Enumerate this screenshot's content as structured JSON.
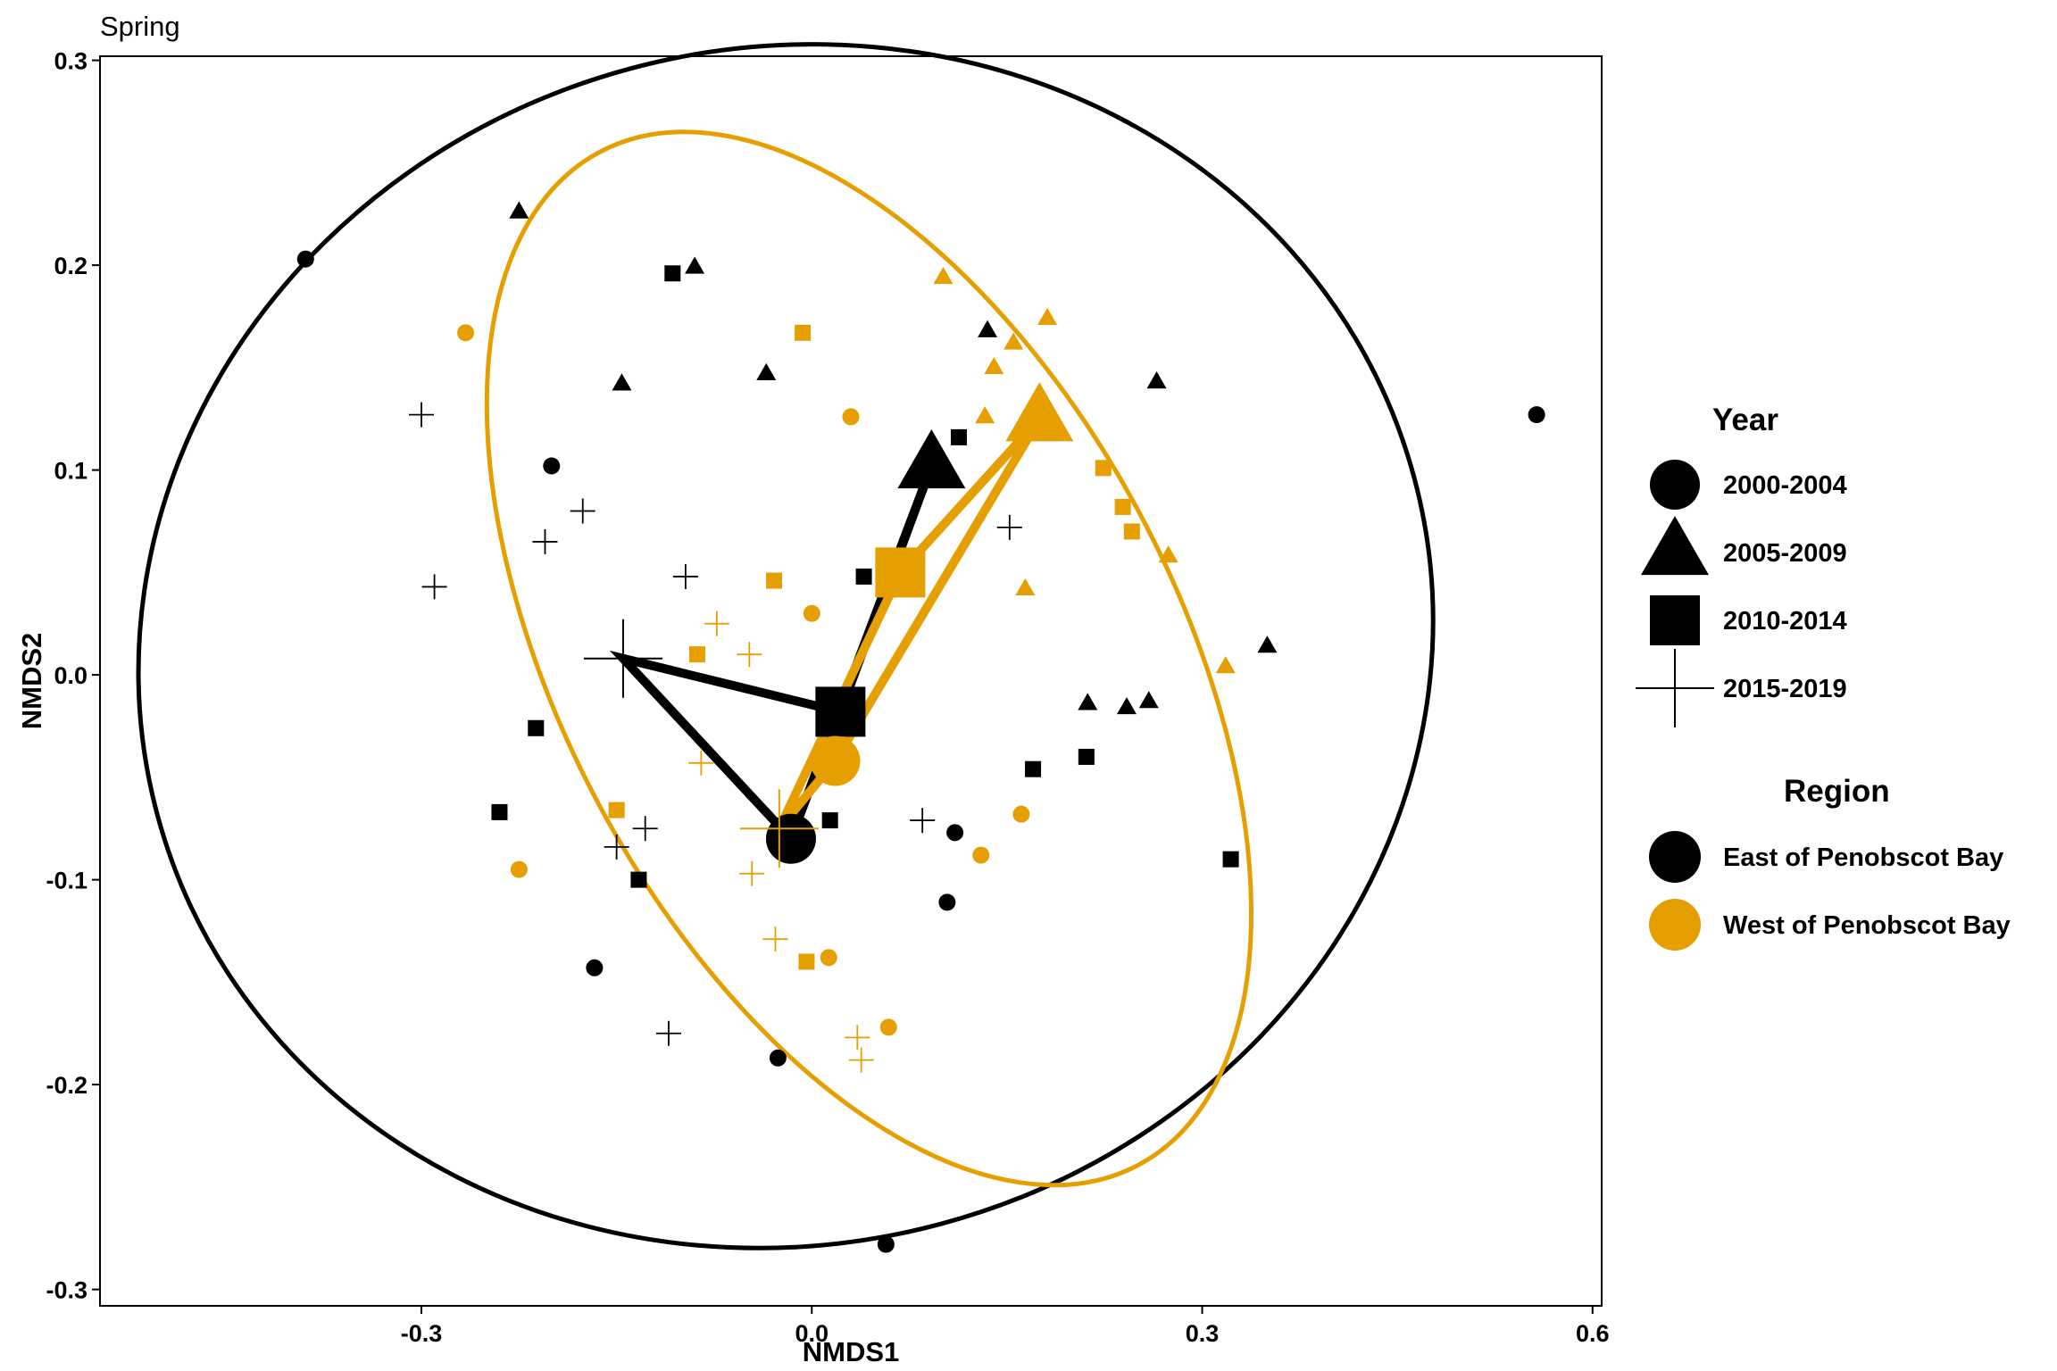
{
  "chart_data": {
    "type": "scatter",
    "title": "Spring",
    "xlabel": "NMDS1",
    "ylabel": "NMDS2",
    "xlim": [
      -0.547,
      0.607
    ],
    "ylim": [
      -0.308,
      0.302
    ],
    "x_ticks": [
      -0.3,
      0.0,
      0.3,
      0.6
    ],
    "x_tick_labels": [
      "-0.3",
      "0.0",
      "0.3",
      "0.6"
    ],
    "y_ticks": [
      -0.3,
      -0.2,
      -0.1,
      0.0,
      0.1,
      0.2,
      0.3
    ],
    "y_tick_labels": [
      "-0.3",
      "-0.2",
      "-0.1",
      "0.0",
      "0.1",
      "0.2",
      "0.3"
    ],
    "grid": false,
    "colors": {
      "East of Penobscot Bay": "#000000",
      "West of Penobscot Bay": "#E69F00"
    },
    "legend": {
      "placement": "right",
      "shape_title": "Year",
      "shape_entries": [
        {
          "label": "2000-2004",
          "shape": "circle"
        },
        {
          "label": "2005-2009",
          "shape": "triangle"
        },
        {
          "label": "2010-2014",
          "shape": "square"
        },
        {
          "label": "2015-2019",
          "shape": "plus"
        }
      ],
      "color_title": "Region",
      "color_entries": [
        {
          "label": "East of Penobscot Bay",
          "color": "#000000"
        },
        {
          "label": "West of Penobscot Bay",
          "color": "#E69F00"
        }
      ]
    },
    "ellipses": [
      {
        "region": "East of Penobscot Bay",
        "center": [
          -0.02,
          0.014
        ],
        "rx": 0.5,
        "ry": 0.292,
        "rotation_deg": -15
      },
      {
        "region": "West of Penobscot Bay",
        "center": [
          0.044,
          0.008
        ],
        "rx": 0.236,
        "ry": 0.28,
        "rotation_deg": -28
      }
    ],
    "centroid_paths": [
      {
        "region": "East of Penobscot Bay",
        "order": [
          "2000-2004",
          "2005-2009",
          "2010-2014",
          "2015-2019"
        ],
        "points": [
          [
            -0.016,
            -0.08
          ],
          [
            0.092,
            0.102
          ],
          [
            0.022,
            -0.018
          ],
          [
            -0.145,
            0.008
          ]
        ]
      },
      {
        "region": "West of Penobscot Bay",
        "order": [
          "2000-2004",
          "2005-2009",
          "2010-2014",
          "2015-2019"
        ],
        "points": [
          [
            0.018,
            -0.042
          ],
          [
            0.175,
            0.125
          ],
          [
            0.068,
            0.05
          ],
          [
            -0.025,
            -0.075
          ]
        ]
      }
    ],
    "series": [
      {
        "region": "East of Penobscot Bay",
        "year": "2000-2004",
        "shape": "circle",
        "points": [
          [
            -0.389,
            0.203
          ],
          [
            -0.2,
            0.102
          ],
          [
            -0.167,
            -0.143
          ],
          [
            -0.026,
            -0.187
          ],
          [
            0.057,
            -0.278
          ],
          [
            0.11,
            -0.077
          ],
          [
            0.104,
            -0.111
          ],
          [
            0.557,
            0.127
          ]
        ]
      },
      {
        "region": "East of Penobscot Bay",
        "year": "2005-2009",
        "shape": "triangle",
        "points": [
          [
            -0.225,
            0.226
          ],
          [
            -0.09,
            0.199
          ],
          [
            -0.146,
            0.142
          ],
          [
            -0.035,
            0.147
          ],
          [
            0.135,
            0.168
          ],
          [
            0.265,
            0.143
          ],
          [
            0.212,
            -0.014
          ],
          [
            0.242,
            -0.016
          ],
          [
            0.259,
            -0.013
          ],
          [
            0.35,
            0.014
          ]
        ]
      },
      {
        "region": "East of Penobscot Bay",
        "year": "2010-2014",
        "shape": "square",
        "points": [
          [
            -0.107,
            0.196
          ],
          [
            0.113,
            0.116
          ],
          [
            0.04,
            0.048
          ],
          [
            -0.212,
            -0.026
          ],
          [
            -0.24,
            -0.067
          ],
          [
            -0.133,
            -0.1
          ],
          [
            0.014,
            -0.071
          ],
          [
            0.17,
            -0.046
          ],
          [
            0.211,
            -0.04
          ],
          [
            0.322,
            -0.09
          ]
        ]
      },
      {
        "region": "East of Penobscot Bay",
        "year": "2015-2019",
        "shape": "plus",
        "points": [
          [
            -0.3,
            0.127
          ],
          [
            -0.29,
            0.043
          ],
          [
            -0.176,
            0.08
          ],
          [
            -0.205,
            0.065
          ],
          [
            -0.097,
            0.048
          ],
          [
            -0.15,
            -0.084
          ],
          [
            -0.128,
            -0.075
          ],
          [
            0.085,
            -0.071
          ],
          [
            0.152,
            0.072
          ],
          [
            -0.11,
            -0.175
          ]
        ]
      },
      {
        "region": "West of Penobscot Bay",
        "year": "2000-2004",
        "shape": "circle",
        "points": [
          [
            -0.266,
            0.167
          ],
          [
            0.03,
            0.126
          ],
          [
            0.0,
            0.03
          ],
          [
            -0.225,
            -0.095
          ],
          [
            0.013,
            -0.138
          ],
          [
            0.059,
            -0.172
          ],
          [
            0.13,
            -0.088
          ],
          [
            0.161,
            -0.068
          ]
        ]
      },
      {
        "region": "West of Penobscot Bay",
        "year": "2005-2009",
        "shape": "triangle",
        "points": [
          [
            0.101,
            0.194
          ],
          [
            0.14,
            0.15
          ],
          [
            0.155,
            0.162
          ],
          [
            0.133,
            0.126
          ],
          [
            0.181,
            0.174
          ],
          [
            0.164,
            0.042
          ],
          [
            0.274,
            0.058
          ],
          [
            0.318,
            0.004
          ]
        ]
      },
      {
        "region": "West of Penobscot Bay",
        "year": "2010-2014",
        "shape": "square",
        "points": [
          [
            -0.007,
            0.167
          ],
          [
            -0.029,
            0.046
          ],
          [
            -0.088,
            0.01
          ],
          [
            0.224,
            0.101
          ],
          [
            0.239,
            0.082
          ],
          [
            0.246,
            0.07
          ],
          [
            -0.15,
            -0.066
          ],
          [
            -0.004,
            -0.14
          ]
        ]
      },
      {
        "region": "West of Penobscot Bay",
        "year": "2015-2019",
        "shape": "plus",
        "points": [
          [
            -0.073,
            0.025
          ],
          [
            -0.048,
            0.01
          ],
          [
            -0.085,
            -0.043
          ],
          [
            -0.046,
            -0.097
          ],
          [
            -0.028,
            -0.129
          ],
          [
            0.035,
            -0.177
          ],
          [
            0.038,
            -0.188
          ],
          [
            -0.025,
            -0.075
          ]
        ]
      }
    ]
  }
}
